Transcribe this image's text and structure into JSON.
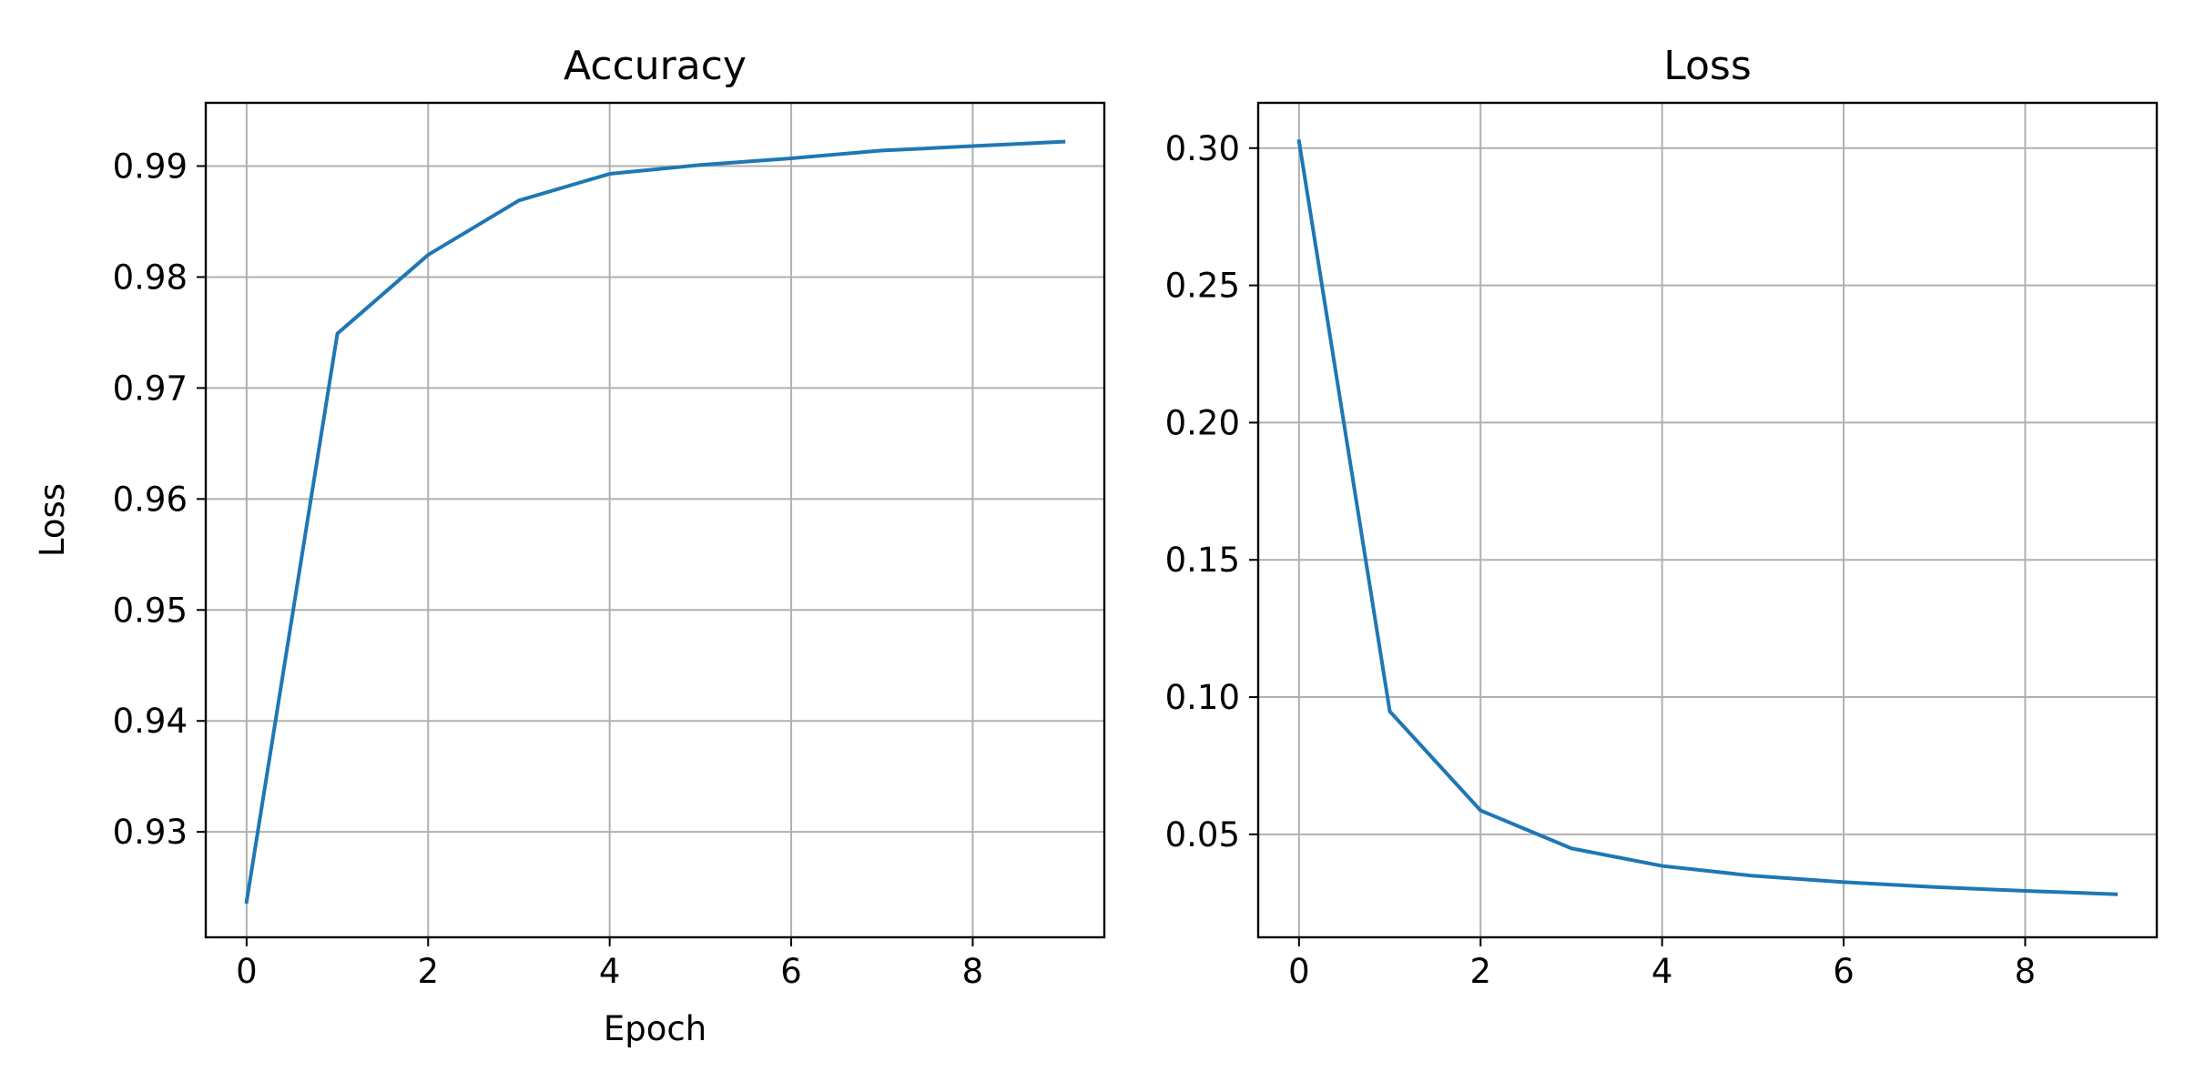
{
  "figure": {
    "background": "#ffffff"
  },
  "chart_data": [
    {
      "type": "line",
      "title": "Accuracy",
      "xlabel": "Epoch",
      "ylabel": "Loss",
      "xlim": [
        -0.45,
        9.45
      ],
      "ylim": [
        0.9205,
        0.9957
      ],
      "xticks": [
        0,
        2,
        4,
        6,
        8
      ],
      "xtick_labels": [
        "0",
        "2",
        "4",
        "6",
        "8"
      ],
      "yticks": [
        0.93,
        0.94,
        0.95,
        0.96,
        0.97,
        0.98,
        0.99
      ],
      "ytick_labels": [
        "0.93",
        "0.94",
        "0.95",
        "0.96",
        "0.97",
        "0.98",
        "0.99"
      ],
      "grid": true,
      "series": [
        {
          "color": "#1f77b4",
          "x": [
            0,
            1,
            2,
            3,
            4,
            5,
            6,
            7,
            8,
            9
          ],
          "values": [
            0.9237,
            0.9749,
            0.982,
            0.9869,
            0.9893,
            0.9901,
            0.9907,
            0.9914,
            0.9918,
            0.9922
          ]
        }
      ]
    },
    {
      "type": "line",
      "title": "Loss",
      "xlabel": "",
      "ylabel": "",
      "xlim": [
        -0.45,
        9.45
      ],
      "ylim": [
        0.0125,
        0.3165
      ],
      "xticks": [
        0,
        2,
        4,
        6,
        8
      ],
      "xtick_labels": [
        "0",
        "2",
        "4",
        "6",
        "8"
      ],
      "yticks": [
        0.05,
        0.1,
        0.15,
        0.2,
        0.25,
        0.3
      ],
      "ytick_labels": [
        "0.05",
        "0.10",
        "0.15",
        "0.20",
        "0.25",
        "0.30"
      ],
      "grid": true,
      "series": [
        {
          "color": "#1f77b4",
          "x": [
            0,
            1,
            2,
            3,
            4,
            5,
            6,
            7,
            8,
            9
          ],
          "values": [
            0.3025,
            0.0948,
            0.0587,
            0.0449,
            0.0385,
            0.0349,
            0.0326,
            0.0308,
            0.0294,
            0.0282
          ]
        }
      ]
    }
  ]
}
